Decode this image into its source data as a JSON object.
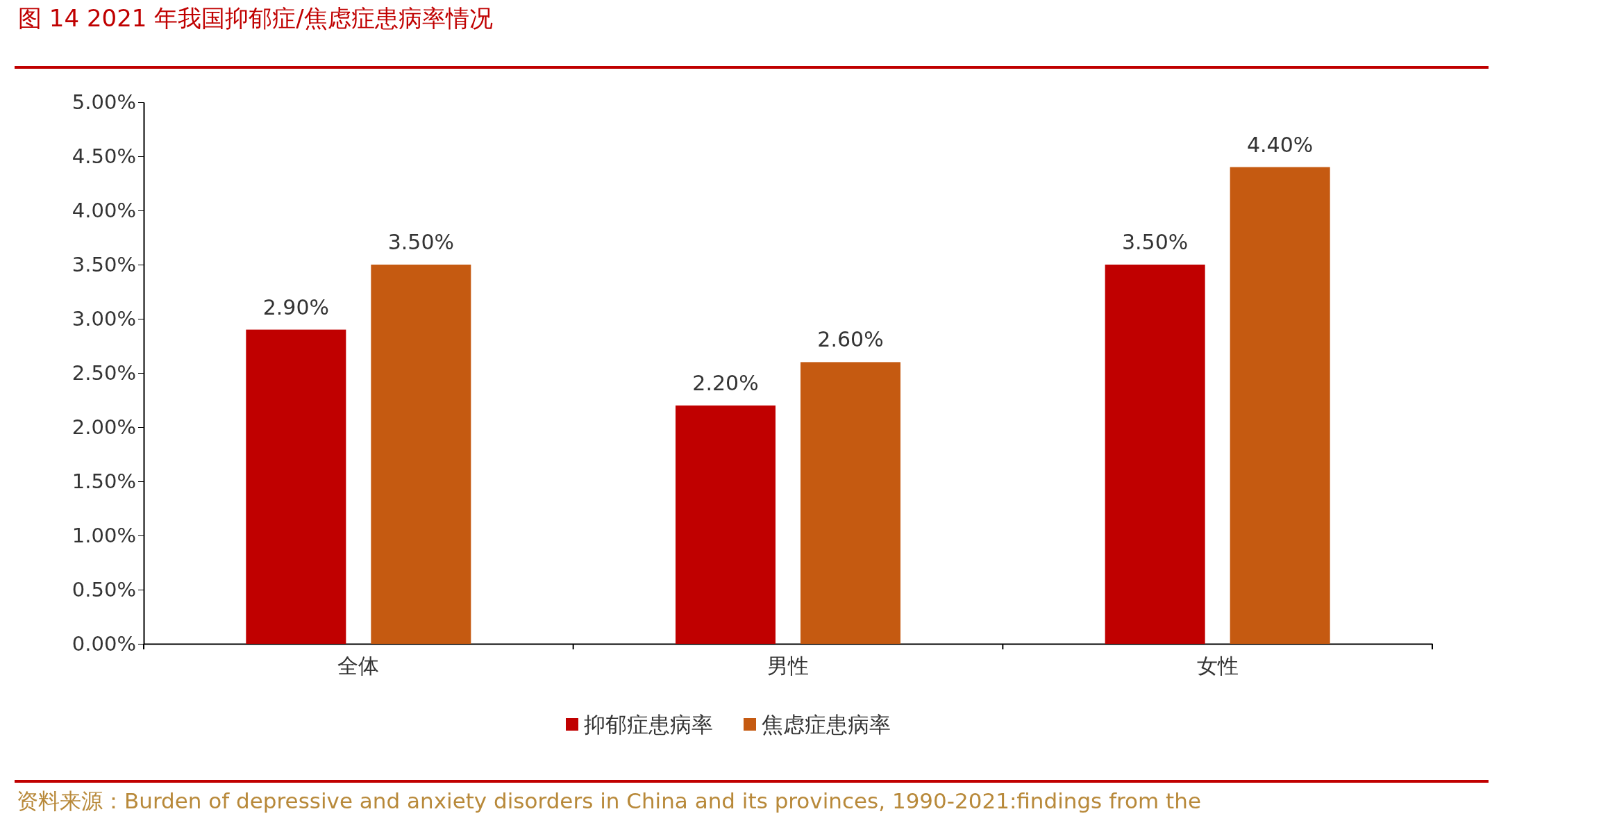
{
  "chart_data": {
    "type": "bar",
    "title": "图 14 2021 年我国抑郁症/焦虑症患病率情况",
    "categories": [
      "全体",
      "男性",
      "女性"
    ],
    "series": [
      {
        "name": "抑郁症患病率",
        "color": "#c00000",
        "values": [
          2.9,
          2.2,
          3.5
        ],
        "value_labels": [
          "2.90%",
          "2.20%",
          "3.50%"
        ]
      },
      {
        "name": "焦虑症患病率",
        "color": "#c55a11",
        "values": [
          3.5,
          2.6,
          4.4
        ],
        "value_labels": [
          "3.50%",
          "2.60%",
          "4.40%"
        ]
      }
    ],
    "ylim": [
      0,
      5
    ],
    "yticks": [
      {
        "value": 0,
        "label": "0.00%"
      },
      {
        "value": 0.5,
        "label": "0.50%"
      },
      {
        "value": 1,
        "label": "1.00%"
      },
      {
        "value": 1.5,
        "label": "1.50%"
      },
      {
        "value": 2,
        "label": "2.00%"
      },
      {
        "value": 2.5,
        "label": "2.50%"
      },
      {
        "value": 3,
        "label": "3.00%"
      },
      {
        "value": 3.5,
        "label": "3.50%"
      },
      {
        "value": 4,
        "label": "4.00%"
      },
      {
        "value": 4.5,
        "label": "4.50%"
      },
      {
        "value": 5,
        "label": "5.00%"
      }
    ],
    "grid": false,
    "legend": "bottom",
    "annotations": [
      "资料来源：Burden of depressive and anxiety disorders in China and its provinces, 1990-2021:findings from the"
    ]
  }
}
